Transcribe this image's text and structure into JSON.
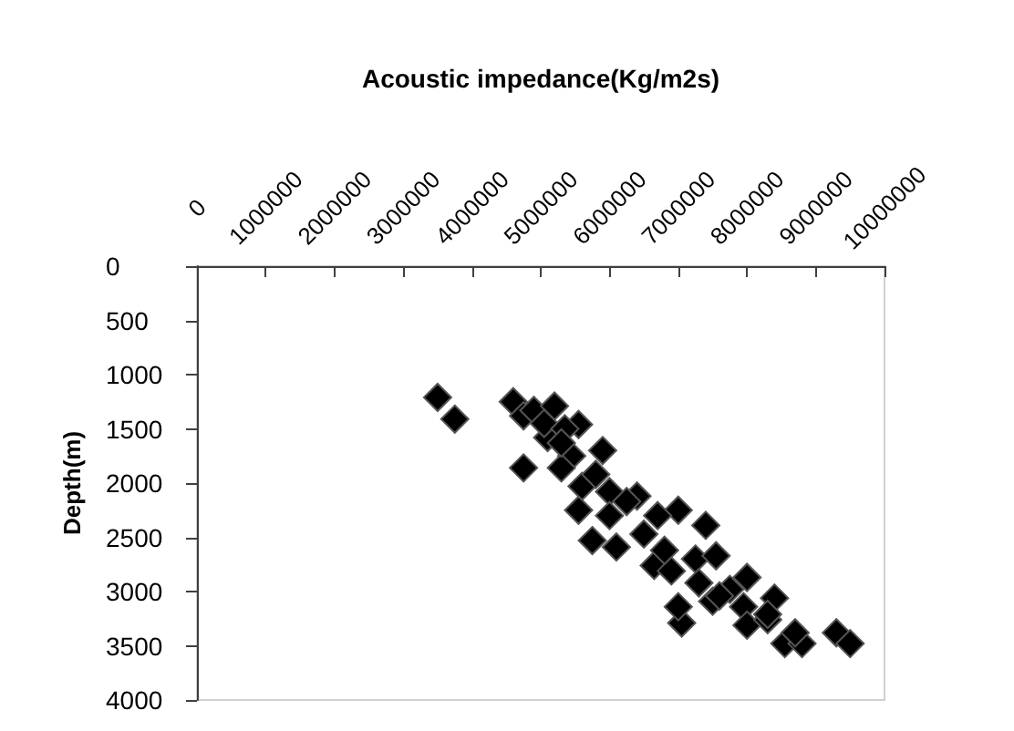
{
  "chart_data": {
    "type": "scatter",
    "xlabel": "Acoustic impedance(Kg/m2s)",
    "ylabel": "Depth(m)",
    "xlim": [
      0,
      10000000
    ],
    "xticks": [
      0,
      1000000,
      2000000,
      3000000,
      4000000,
      5000000,
      6000000,
      7000000,
      8000000,
      9000000,
      10000000
    ],
    "ylim": [
      4000,
      0
    ],
    "yticks": [
      0,
      500,
      1000,
      1500,
      2000,
      2500,
      3000,
      3500,
      4000
    ],
    "grid": false,
    "marker": "diamond",
    "series": [
      {
        "color": "#000000",
        "x": [
          3500000,
          3750000,
          4600000,
          4750000,
          4900000,
          5200000,
          5550000,
          5100000,
          5900000,
          4750000,
          5450000,
          5300000,
          5600000,
          6000000,
          6400000,
          5550000,
          6000000,
          5750000,
          6100000,
          6500000,
          7000000,
          7400000,
          6700000,
          6650000,
          6900000,
          7250000,
          7550000,
          7300000,
          7750000,
          8000000,
          7500000,
          7050000,
          7000000,
          7950000,
          8400000,
          8000000,
          8300000,
          8550000,
          8800000,
          8700000,
          9300000,
          9500000,
          8300000,
          7600000,
          6250000,
          5800000,
          5050000,
          5350000,
          5300000,
          6800000
        ],
        "values": [
          1210,
          1410,
          1250,
          1380,
          1330,
          1290,
          1460,
          1580,
          1700,
          1860,
          1750,
          1860,
          2030,
          2080,
          2120,
          2250,
          2300,
          2530,
          2590,
          2470,
          2250,
          2390,
          2300,
          2760,
          2810,
          2700,
          2670,
          2920,
          2980,
          2870,
          3090,
          3290,
          3140,
          3140,
          3060,
          3310,
          3260,
          3480,
          3480,
          3380,
          3380,
          3480,
          3210,
          3040,
          2170,
          1920,
          1450,
          1500,
          1630,
          2620
        ]
      }
    ]
  }
}
